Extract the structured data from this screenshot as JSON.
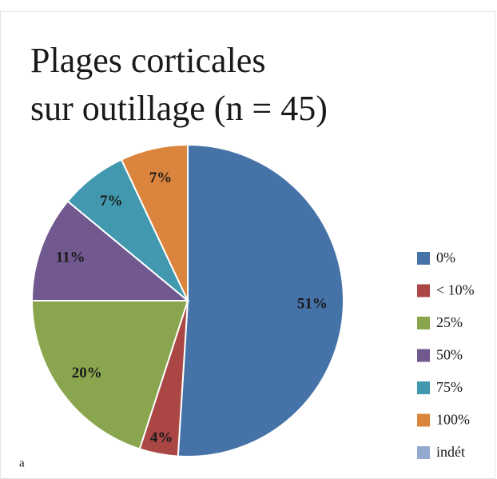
{
  "chart_data": {
    "type": "pie",
    "title": [
      "Plages corticales",
      "sur outillage (n = 45)"
    ],
    "categories": [
      "0%",
      "< 10%",
      "25%",
      "50%",
      "75%",
      "100%",
      "indét"
    ],
    "values": [
      51,
      4,
      20,
      11,
      7,
      7,
      0
    ],
    "value_labels": [
      "51%",
      "4%",
      "20%",
      "11%",
      "7%",
      "7%",
      null
    ],
    "colors": [
      "#4572a7",
      "#aa4643",
      "#89a54e",
      "#71588f",
      "#4198af",
      "#db843d",
      "#93a9cf"
    ],
    "legend": "right",
    "annotation": "a"
  }
}
